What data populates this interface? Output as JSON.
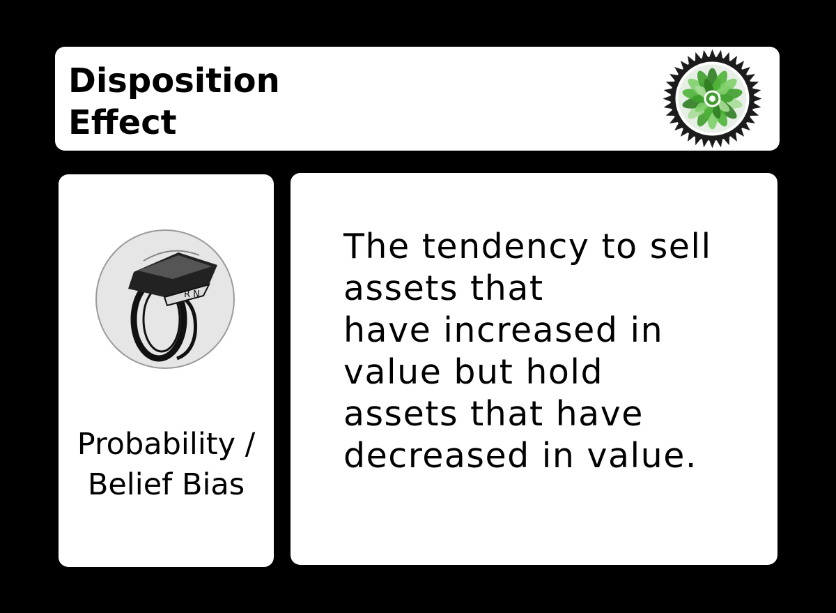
{
  "title": {
    "lines": [
      "Disposition",
      "Effect"
    ]
  },
  "category": {
    "lines": [
      "Probability /",
      "Belief Bias"
    ],
    "icon": "ring-icon"
  },
  "definition": {
    "lines": [
      "The tendency to sell",
      "assets that",
      "have increased in",
      "value but hold",
      "assets that have",
      "decreased in value."
    ]
  },
  "badge": {
    "icon": "green-flower-seal-icon",
    "colors": {
      "accent": "#3f9e2e",
      "dark": "#1c1c1c"
    }
  }
}
